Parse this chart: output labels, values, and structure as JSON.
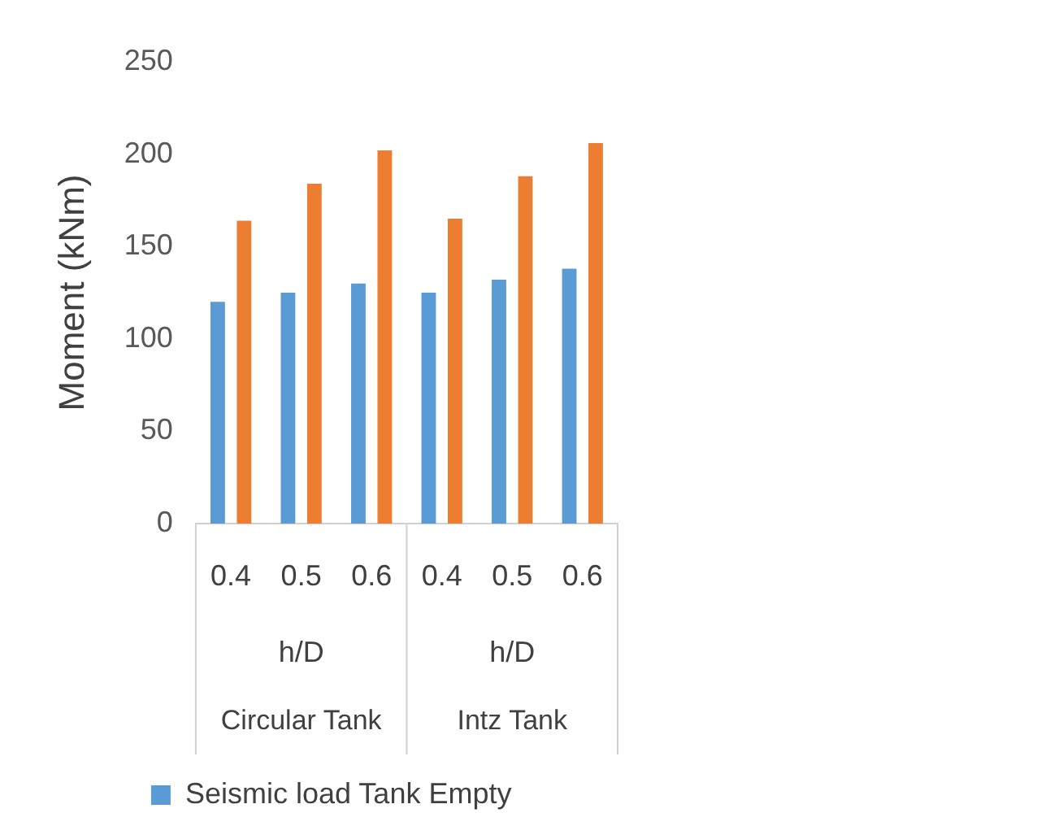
{
  "chart_data": {
    "type": "bar",
    "ylabel": "Moment (kNm)",
    "categories": [
      "0.4",
      "0.5",
      "0.6",
      "0.4",
      "0.5",
      "0.6"
    ],
    "series": [
      {
        "name": "Seismic load Tank Empty",
        "color": "#5b9bd5",
        "values": [
          120,
          125,
          130,
          125,
          132,
          138
        ]
      },
      {
        "color": "#ed7d31",
        "values": [
          164,
          184,
          202,
          165,
          188,
          206
        ]
      }
    ],
    "ylim": [
      0,
      250
    ],
    "yticks": [
      0,
      50,
      100,
      150,
      200,
      250
    ],
    "grid": false,
    "legend": "bottom",
    "annotations": [
      "h/D",
      "h/D",
      "Circular Tank",
      "Intz Tank"
    ]
  }
}
